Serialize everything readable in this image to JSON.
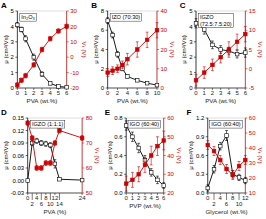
{
  "chart_data": [
    {
      "type": "line",
      "title": "In₂O₃",
      "annotations": [
        "A"
      ],
      "xlabel": "PVA (wt.%)",
      "ylabel": "μ (cm²/Vs)",
      "y2label": "Vₜ (V)",
      "xlim": [
        0,
        6
      ],
      "xticks": [
        0,
        1,
        2,
        3,
        4,
        5,
        6
      ],
      "ylim": [
        0,
        5
      ],
      "yticks": [
        0,
        1,
        2,
        3,
        4,
        5
      ],
      "y2lim": [
        -20,
        30
      ],
      "y2ticks": [
        -20,
        -10,
        0,
        10,
        20,
        30
      ],
      "x": [
        0,
        0.5,
        1,
        2,
        3,
        4,
        5,
        6
      ],
      "series": [
        {
          "axis": "y",
          "color": "#000000",
          "marker": "open-square",
          "values": [
            4.1,
            3.8,
            3.2,
            2.0,
            0.9,
            0.3,
            0.1,
            0.05
          ],
          "errors": [
            0.15,
            0.15,
            0.2,
            0.2,
            0.15,
            0.08,
            0.05,
            0.03
          ]
        },
        {
          "axis": "y2",
          "color": "#cc0000",
          "marker": "square",
          "values": [
            -18,
            -15,
            -12,
            -5,
            5,
            12,
            17,
            20
          ],
          "errors": [
            1.5,
            1.5,
            1.5,
            1.5,
            1.5,
            1.5,
            1.5,
            1.5
          ]
        }
      ]
    },
    {
      "type": "line",
      "title": "IZO (70:30)",
      "annotations": [
        "B"
      ],
      "xlabel": "PVA (wt.%)",
      "ylabel": "μ (cm²/Vs)",
      "y2label": "Vₜ (V)",
      "xlim": [
        0,
        10
      ],
      "xticks": [
        0,
        2,
        4,
        6,
        8,
        10
      ],
      "ylim": [
        0,
        8
      ],
      "yticks": [
        0,
        2,
        4,
        6,
        8
      ],
      "y2lim": [
        0,
        40
      ],
      "y2ticks": [
        0,
        10,
        20,
        30,
        40
      ],
      "x": [
        0,
        1,
        2,
        3,
        4,
        6,
        8,
        10
      ],
      "series": [
        {
          "axis": "y",
          "color": "#000000",
          "marker": "open-square",
          "values": [
            7.0,
            5.5,
            3.5,
            2.0,
            1.2,
            0.8,
            0.5,
            0.3
          ],
          "errors": [
            0.3,
            0.3,
            0.3,
            0.2,
            0.15,
            0.1,
            0.1,
            0.05
          ]
        },
        {
          "axis": "y2",
          "color": "#cc0000",
          "marker": "square",
          "values": [
            8,
            9,
            10,
            12,
            15,
            20,
            25,
            30
          ],
          "errors": [
            2,
            2,
            2,
            2,
            3,
            4,
            4,
            4
          ]
        }
      ]
    },
    {
      "type": "line",
      "title": "IGZO\n(72.5:7.5:20)",
      "annotations": [
        "C"
      ],
      "xlabel": "PVA (wt.%)",
      "ylabel": "μ (cm²/Vs)",
      "y2label": "Vₜ (V)",
      "xlim": [
        0,
        6
      ],
      "xticks": [
        0,
        1,
        2,
        3,
        4,
        5,
        6
      ],
      "ylim": [
        0,
        5
      ],
      "yticks": [
        0,
        1,
        2,
        3,
        4,
        5
      ],
      "y2lim": [
        -5,
        15
      ],
      "y2ticks": [
        -5,
        0,
        5,
        10,
        15
      ],
      "x": [
        0,
        1,
        2,
        3,
        4,
        5,
        6
      ],
      "series": [
        {
          "axis": "y",
          "color": "#000000",
          "marker": "open-square",
          "values": [
            4.2,
            3.8,
            2.8,
            2.5,
            2.4,
            2.2,
            2.3
          ],
          "errors": [
            0.3,
            0.3,
            0.25,
            0.25,
            0.25,
            0.25,
            0.3
          ]
        },
        {
          "axis": "y2",
          "color": "#cc0000",
          "marker": "square",
          "values": [
            -3,
            -1,
            1,
            3,
            5,
            7,
            9
          ],
          "errors": [
            1.5,
            1.5,
            1.5,
            1.5,
            2,
            2,
            2
          ]
        }
      ]
    },
    {
      "type": "line",
      "title": "IGZO (1:1:1)",
      "annotations": [
        "D"
      ],
      "xlabel": "PVA (%)",
      "ylabel": "μ (cm²/Vs)",
      "y2label": "Vₜ (V)",
      "xlim": [
        0,
        24
      ],
      "xticks": [
        0,
        2,
        4,
        6,
        8,
        10,
        12,
        14,
        24
      ],
      "ylim": [
        -0.03,
        0.15
      ],
      "yticks": [
        -0.03,
        {
          "value": 0,
          "label": "0.00"
        },
        0.03,
        0.06,
        0.09,
        0.12,
        0.15
      ],
      "y2lim": [
        50,
        80
      ],
      "y2ticks": [
        50,
        60,
        70,
        80
      ],
      "x": [
        0,
        2,
        4,
        6,
        8,
        10,
        12,
        14,
        24
      ],
      "series": [
        {
          "axis": "y",
          "color": "#000000",
          "marker": "open-square",
          "values": [
            0.0,
            0.09,
            0.095,
            0.09,
            0.088,
            0.085,
            0.04,
            0.003,
            0.001
          ],
          "errors": [
            0.002,
            0.006,
            0.006,
            0.006,
            0.006,
            0.006,
            0.01,
            0.002,
            0.001
          ]
        },
        {
          "axis": "y2",
          "color": "#cc0000",
          "marker": "square",
          "values": [
            78,
            72,
            60,
            60,
            62,
            62,
            70,
            75,
            72
          ],
          "errors": [
            1,
            1,
            1,
            1,
            1,
            1,
            1,
            1,
            1
          ]
        }
      ]
    },
    {
      "type": "line",
      "title": "IGO (60:40)",
      "annotations": [
        "E"
      ],
      "xlabel": "PVP (wt.%)",
      "ylabel": "μ (cm²/Vs)",
      "y2label": "Vₜ (V)",
      "xlim": [
        0,
        6
      ],
      "xticks": [
        0,
        1,
        2,
        3,
        4,
        5,
        6
      ],
      "ylim": [
        0,
        0.8
      ],
      "yticks": [
        {
          "value": 0,
          "label": "0.0"
        },
        0.2,
        0.4,
        0.6,
        0.8
      ],
      "y2lim": [
        20,
        60
      ],
      "y2ticks": [
        20,
        30,
        40,
        50,
        60
      ],
      "x": [
        0,
        1,
        2,
        3,
        4,
        5,
        6
      ],
      "series": [
        {
          "axis": "y",
          "color": "#000000",
          "marker": "open-square",
          "values": [
            0.72,
            0.6,
            0.48,
            0.35,
            0.22,
            0.14,
            0.08
          ],
          "errors": [
            0.05,
            0.05,
            0.05,
            0.05,
            0.04,
            0.04,
            0.03
          ]
        },
        {
          "axis": "y2",
          "color": "#cc0000",
          "marker": "square",
          "values": [
            25,
            27,
            30,
            35,
            40,
            45,
            48
          ],
          "errors": [
            4,
            4,
            4,
            4,
            5,
            5,
            5
          ]
        }
      ]
    },
    {
      "type": "line",
      "title": "IGO (60:40)",
      "annotations": [
        "F"
      ],
      "xlabel": "Glycerol (wt.%)",
      "ylabel": "μ (cm²/Vs)",
      "y2label": "Vₜ (V)",
      "xlim": [
        0,
        12
      ],
      "xticks": [
        0,
        2,
        4,
        6,
        8,
        10,
        12
      ],
      "ylim": [
        0,
        1.2
      ],
      "yticks": [
        {
          "value": 0,
          "label": "0.0"
        },
        0.3,
        0.6,
        0.9,
        1.2
      ],
      "y2lim": [
        10,
        60
      ],
      "y2ticks": [
        10,
        20,
        30,
        40,
        50,
        60
      ],
      "x": [
        0,
        2,
        4,
        6,
        8,
        10,
        12
      ],
      "series": [
        {
          "axis": "y",
          "color": "#000000",
          "marker": "open-square",
          "values": [
            0.08,
            0.38,
            0.75,
            0.92,
            0.3,
            0.25,
            0.2
          ],
          "errors": [
            0.05,
            0.06,
            0.06,
            0.08,
            0.06,
            0.05,
            0.05
          ]
        },
        {
          "axis": "y2",
          "color": "#cc0000",
          "marker": "square",
          "values": [
            42,
            38,
            32,
            26,
            22,
            28,
            32
          ],
          "errors": [
            3,
            3,
            3,
            3,
            3,
            3,
            3
          ]
        }
      ]
    }
  ]
}
